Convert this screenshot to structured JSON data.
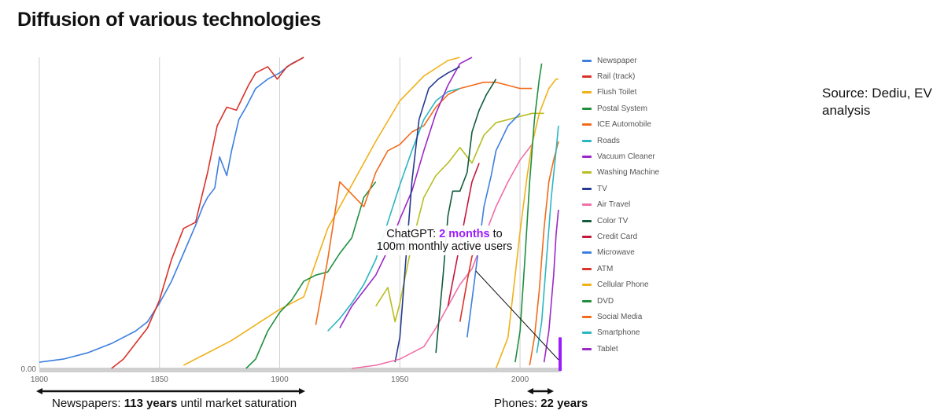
{
  "header": {
    "title": "Diffusion of various technologies"
  },
  "source_note": "Source: Dediu, EV analysis",
  "callout": {
    "prefix": "ChatGPT: ",
    "highlight": "2 months",
    "suffix": " to 100m monthly active users",
    "color": "#9b1cff"
  },
  "notes": {
    "newspapers": {
      "prefix": "Newspapers: ",
      "bold": "113 years",
      "suffix": " until market saturation"
    },
    "phones": {
      "prefix": "Phones: ",
      "bold": "22 years"
    }
  },
  "chart_data": {
    "type": "line",
    "title": "Diffusion of various technologies",
    "xlabel": "",
    "ylabel": "",
    "xlim": [
      1800,
      2017
    ],
    "ylim": [
      0,
      100
    ],
    "x_ticks": [
      "1800",
      "1850",
      "1900",
      "1950",
      "2000"
    ],
    "y_ticks": [
      "0.00"
    ],
    "grid": "vertical",
    "legend": "right",
    "series": [
      {
        "name": "Newspaper",
        "color": "#3d7fe0",
        "points": [
          [
            1800,
            2
          ],
          [
            1810,
            3
          ],
          [
            1820,
            5
          ],
          [
            1830,
            8
          ],
          [
            1840,
            12
          ],
          [
            1845,
            15
          ],
          [
            1850,
            21
          ],
          [
            1855,
            28
          ],
          [
            1860,
            37
          ],
          [
            1865,
            46
          ],
          [
            1868,
            52
          ],
          [
            1870,
            55
          ],
          [
            1873,
            58
          ],
          [
            1875,
            68
          ],
          [
            1878,
            62
          ],
          [
            1880,
            70
          ],
          [
            1883,
            80
          ],
          [
            1886,
            84
          ],
          [
            1890,
            90
          ],
          [
            1895,
            93
          ],
          [
            1900,
            95
          ],
          [
            1905,
            98
          ],
          [
            1910,
            100
          ]
        ]
      },
      {
        "name": "Rail (track)",
        "color": "#d9332a",
        "points": [
          [
            1830,
            0
          ],
          [
            1835,
            3
          ],
          [
            1840,
            8
          ],
          [
            1845,
            13
          ],
          [
            1850,
            22
          ],
          [
            1855,
            35
          ],
          [
            1860,
            45
          ],
          [
            1865,
            47
          ],
          [
            1870,
            63
          ],
          [
            1874,
            78
          ],
          [
            1878,
            84
          ],
          [
            1882,
            83
          ],
          [
            1887,
            91
          ],
          [
            1890,
            95
          ],
          [
            1895,
            97
          ],
          [
            1899,
            93
          ],
          [
            1903,
            97
          ],
          [
            1910,
            100
          ]
        ]
      },
      {
        "name": "Flush Toilet",
        "color": "#f0b11a",
        "points": [
          [
            1860,
            1
          ],
          [
            1880,
            9
          ],
          [
            1890,
            14
          ],
          [
            1900,
            19
          ],
          [
            1910,
            23
          ],
          [
            1920,
            45
          ],
          [
            1930,
            59
          ],
          [
            1940,
            73
          ],
          [
            1950,
            86
          ],
          [
            1960,
            94
          ],
          [
            1970,
            99
          ],
          [
            1975,
            100
          ]
        ]
      },
      {
        "name": "Postal System",
        "color": "#1f8f3e",
        "points": [
          [
            1886,
            0
          ],
          [
            1890,
            3
          ],
          [
            1895,
            12
          ],
          [
            1900,
            18
          ],
          [
            1905,
            22
          ],
          [
            1910,
            28
          ],
          [
            1915,
            30
          ],
          [
            1920,
            31
          ],
          [
            1925,
            37
          ],
          [
            1930,
            42
          ],
          [
            1935,
            55
          ],
          [
            1940,
            60
          ]
        ]
      },
      {
        "name": "ICE Automobile",
        "color": "#f26b1b",
        "points": [
          [
            1915,
            14
          ],
          [
            1920,
            35
          ],
          [
            1925,
            60
          ],
          [
            1930,
            56
          ],
          [
            1935,
            52
          ],
          [
            1940,
            63
          ],
          [
            1945,
            70
          ],
          [
            1950,
            72
          ],
          [
            1955,
            76
          ],
          [
            1960,
            78
          ],
          [
            1965,
            84
          ],
          [
            1970,
            88
          ],
          [
            1975,
            90
          ],
          [
            1980,
            91
          ],
          [
            1985,
            92
          ],
          [
            1990,
            92
          ],
          [
            1995,
            91
          ],
          [
            2000,
            90
          ],
          [
            2005,
            90
          ]
        ]
      },
      {
        "name": "Roads",
        "color": "#2bb6c2",
        "points": [
          [
            1920,
            12
          ],
          [
            1925,
            16
          ],
          [
            1930,
            21
          ],
          [
            1935,
            27
          ],
          [
            1940,
            35
          ],
          [
            1945,
            47
          ],
          [
            1950,
            59
          ],
          [
            1955,
            70
          ],
          [
            1960,
            80
          ],
          [
            1965,
            86
          ],
          [
            1970,
            89
          ],
          [
            1975,
            90
          ]
        ]
      },
      {
        "name": "Vacuum Cleaner",
        "color": "#9b28c9",
        "points": [
          [
            1925,
            13
          ],
          [
            1930,
            20
          ],
          [
            1935,
            25
          ],
          [
            1940,
            30
          ],
          [
            1945,
            38
          ],
          [
            1950,
            48
          ],
          [
            1955,
            57
          ],
          [
            1960,
            70
          ],
          [
            1965,
            82
          ],
          [
            1970,
            91
          ],
          [
            1975,
            98
          ],
          [
            1980,
            100
          ]
        ]
      },
      {
        "name": "Washing Machine",
        "color": "#b9bd21",
        "points": [
          [
            1940,
            20
          ],
          [
            1945,
            26
          ],
          [
            1948,
            15
          ],
          [
            1950,
            21
          ],
          [
            1955,
            40
          ],
          [
            1960,
            55
          ],
          [
            1965,
            62
          ],
          [
            1970,
            66
          ],
          [
            1975,
            71
          ],
          [
            1980,
            66
          ],
          [
            1985,
            75
          ],
          [
            1990,
            79
          ],
          [
            1995,
            80
          ],
          [
            2000,
            81
          ],
          [
            2005,
            82
          ],
          [
            2010,
            82
          ]
        ]
      },
      {
        "name": "TV",
        "color": "#243a8f",
        "points": [
          [
            1948,
            2
          ],
          [
            1950,
            10
          ],
          [
            1952,
            30
          ],
          [
            1955,
            60
          ],
          [
            1958,
            80
          ],
          [
            1962,
            90
          ],
          [
            1966,
            93
          ],
          [
            1970,
            95
          ],
          [
            1975,
            97
          ]
        ]
      },
      {
        "name": "Air Travel",
        "color": "#ef6fa8",
        "points": [
          [
            1930,
            0
          ],
          [
            1940,
            1
          ],
          [
            1950,
            3
          ],
          [
            1960,
            7
          ],
          [
            1965,
            13
          ],
          [
            1970,
            20
          ],
          [
            1975,
            27
          ],
          [
            1980,
            32
          ],
          [
            1985,
            42
          ],
          [
            1990,
            52
          ],
          [
            1995,
            60
          ],
          [
            2000,
            67
          ],
          [
            2005,
            72
          ]
        ]
      },
      {
        "name": "Color TV",
        "color": "#135c3c",
        "points": [
          [
            1965,
            5
          ],
          [
            1968,
            30
          ],
          [
            1970,
            49
          ],
          [
            1972,
            57
          ],
          [
            1975,
            57
          ],
          [
            1978,
            63
          ],
          [
            1980,
            76
          ],
          [
            1983,
            83
          ],
          [
            1986,
            88
          ],
          [
            1990,
            93
          ]
        ]
      },
      {
        "name": "Credit Card",
        "color": "#c4173c",
        "points": [
          [
            1970,
            20
          ],
          [
            1975,
            40
          ],
          [
            1978,
            52
          ],
          [
            1980,
            60
          ],
          [
            1983,
            66
          ]
        ]
      },
      {
        "name": "Microwave",
        "color": "#3d7fe0",
        "points": [
          [
            1978,
            10
          ],
          [
            1980,
            22
          ],
          [
            1983,
            40
          ],
          [
            1985,
            52
          ],
          [
            1988,
            62
          ],
          [
            1990,
            70
          ],
          [
            1995,
            78
          ],
          [
            2000,
            82
          ]
        ]
      },
      {
        "name": "ATM",
        "color": "#d9332a",
        "points": [
          [
            1975,
            15
          ],
          [
            1978,
            28
          ],
          [
            1980,
            36
          ],
          [
            1985,
            44
          ]
        ]
      },
      {
        "name": "Cellular Phone",
        "color": "#f0b11a",
        "points": [
          [
            1990,
            0
          ],
          [
            1995,
            10
          ],
          [
            1998,
            30
          ],
          [
            2000,
            44
          ],
          [
            2003,
            62
          ],
          [
            2005,
            72
          ],
          [
            2008,
            82
          ],
          [
            2010,
            86
          ],
          [
            2012,
            90
          ],
          [
            2015,
            93
          ],
          [
            2016,
            93
          ]
        ]
      },
      {
        "name": "DVD",
        "color": "#1f8f3e",
        "points": [
          [
            1998,
            2
          ],
          [
            2000,
            12
          ],
          [
            2002,
            35
          ],
          [
            2004,
            60
          ],
          [
            2006,
            80
          ],
          [
            2008,
            93
          ],
          [
            2009,
            98
          ]
        ]
      },
      {
        "name": "Social Media",
        "color": "#f26b1b",
        "points": [
          [
            2004,
            1
          ],
          [
            2006,
            10
          ],
          [
            2008,
            25
          ],
          [
            2010,
            45
          ],
          [
            2012,
            60
          ],
          [
            2014,
            67
          ],
          [
            2016,
            73
          ]
        ]
      },
      {
        "name": "Smartphone",
        "color": "#2bb6c2",
        "points": [
          [
            2007,
            5
          ],
          [
            2009,
            15
          ],
          [
            2011,
            35
          ],
          [
            2013,
            55
          ],
          [
            2015,
            70
          ],
          [
            2016,
            78
          ]
        ]
      },
      {
        "name": "Tablet",
        "color": "#9b28c9",
        "points": [
          [
            2010,
            2
          ],
          [
            2012,
            12
          ],
          [
            2014,
            30
          ],
          [
            2015,
            43
          ],
          [
            2016,
            51
          ]
        ]
      }
    ],
    "chatgpt_marker": {
      "x": 2017,
      "y": [
        0,
        10
      ],
      "color": "#9b1cff"
    }
  }
}
